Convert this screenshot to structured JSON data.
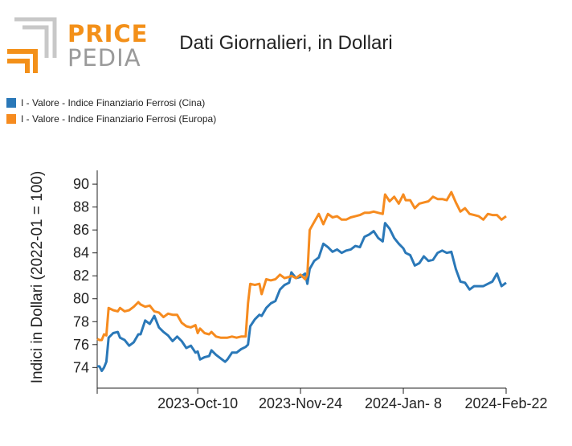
{
  "header": {
    "logo_top": "PRICE",
    "logo_bottom": "PEDIA",
    "title": "Dati Giornalieri, in Dollari"
  },
  "colors": {
    "cina": "#2a78b8",
    "europa": "#f68b1f",
    "logo_orange": "#f39019",
    "logo_gray": "#9a9a9a"
  },
  "chart_data": {
    "type": "line",
    "title": "Dati Giornalieri, in Dollari",
    "ylabel": "Indici in Dollari (2022-01 = 100)",
    "xlabel": "",
    "ylim": [
      72.2,
      91.2
    ],
    "yticks": [
      74,
      76,
      78,
      80,
      82,
      84,
      86,
      88,
      90
    ],
    "x_range": [
      "2023-08-27",
      "2024-02-22"
    ],
    "xticks": [
      {
        "date": "2023-08-27",
        "label": ""
      },
      {
        "date": "2023-10-10",
        "label": "2023-Oct-10"
      },
      {
        "date": "2023-11-24",
        "label": "2023-Nov-24"
      },
      {
        "date": "2024-01-08",
        "label": "2024-Jan- 8"
      },
      {
        "date": "2024-02-22",
        "label": "2024-Feb-22"
      }
    ],
    "legend_position": "top-left",
    "series": [
      {
        "name": "I - Valore - Indice Finanziario Ferrosi (Cina)",
        "color": "#2a78b8",
        "points": [
          [
            "2023-08-27",
            74.1
          ],
          [
            "2023-08-28",
            74.1
          ],
          [
            "2023-08-29",
            73.7
          ],
          [
            "2023-08-30",
            74.0
          ],
          [
            "2023-08-31",
            74.5
          ],
          [
            "2023-09-01",
            76.6
          ],
          [
            "2023-09-03",
            77.0
          ],
          [
            "2023-09-05",
            77.1
          ],
          [
            "2023-09-06",
            76.6
          ],
          [
            "2023-09-08",
            76.4
          ],
          [
            "2023-09-10",
            75.9
          ],
          [
            "2023-09-12",
            76.2
          ],
          [
            "2023-09-14",
            76.9
          ],
          [
            "2023-09-15",
            76.9
          ],
          [
            "2023-09-17",
            78.1
          ],
          [
            "2023-09-19",
            77.8
          ],
          [
            "2023-09-21",
            78.5
          ],
          [
            "2023-09-23",
            77.5
          ],
          [
            "2023-09-25",
            77.1
          ],
          [
            "2023-09-27",
            76.8
          ],
          [
            "2023-09-29",
            76.3
          ],
          [
            "2023-10-01",
            76.7
          ],
          [
            "2023-10-03",
            76.3
          ],
          [
            "2023-10-05",
            75.7
          ],
          [
            "2023-10-07",
            75.9
          ],
          [
            "2023-10-09",
            75.3
          ],
          [
            "2023-10-10",
            75.4
          ],
          [
            "2023-10-11",
            74.7
          ],
          [
            "2023-10-13",
            74.9
          ],
          [
            "2023-10-15",
            75.0
          ],
          [
            "2023-10-16",
            75.5
          ],
          [
            "2023-10-18",
            75.1
          ],
          [
            "2023-10-20",
            74.8
          ],
          [
            "2023-10-22",
            74.5
          ],
          [
            "2023-10-23",
            74.7
          ],
          [
            "2023-10-25",
            75.3
          ],
          [
            "2023-10-27",
            75.3
          ],
          [
            "2023-10-29",
            75.6
          ],
          [
            "2023-10-31",
            75.8
          ],
          [
            "2023-11-01",
            76.0
          ],
          [
            "2023-11-02",
            77.6
          ],
          [
            "2023-11-04",
            78.2
          ],
          [
            "2023-11-06",
            78.6
          ],
          [
            "2023-11-07",
            78.5
          ],
          [
            "2023-11-09",
            79.2
          ],
          [
            "2023-11-11",
            79.6
          ],
          [
            "2023-11-13",
            79.8
          ],
          [
            "2023-11-15",
            80.8
          ],
          [
            "2023-11-17",
            81.2
          ],
          [
            "2023-11-19",
            81.4
          ],
          [
            "2023-11-20",
            82.3
          ],
          [
            "2023-11-22",
            81.8
          ],
          [
            "2023-11-24",
            81.9
          ],
          [
            "2023-11-26",
            82.2
          ],
          [
            "2023-11-27",
            81.3
          ],
          [
            "2023-11-28",
            82.6
          ],
          [
            "2023-11-30",
            83.3
          ],
          [
            "2023-12-02",
            83.6
          ],
          [
            "2023-12-04",
            84.8
          ],
          [
            "2023-12-06",
            84.5
          ],
          [
            "2023-12-08",
            84.1
          ],
          [
            "2023-12-10",
            84.3
          ],
          [
            "2023-12-12",
            84.0
          ],
          [
            "2023-12-14",
            84.2
          ],
          [
            "2023-12-16",
            84.3
          ],
          [
            "2023-12-18",
            84.6
          ],
          [
            "2023-12-20",
            84.5
          ],
          [
            "2023-12-22",
            85.4
          ],
          [
            "2023-12-24",
            85.6
          ],
          [
            "2023-12-26",
            85.9
          ],
          [
            "2023-12-28",
            85.3
          ],
          [
            "2023-12-30",
            85.0
          ],
          [
            "2023-12-31",
            86.6
          ],
          [
            "2024-01-02",
            86.1
          ],
          [
            "2024-01-04",
            85.3
          ],
          [
            "2024-01-06",
            84.8
          ],
          [
            "2024-01-08",
            84.4
          ],
          [
            "2024-01-09",
            84.0
          ],
          [
            "2024-01-11",
            83.8
          ],
          [
            "2024-01-13",
            82.9
          ],
          [
            "2024-01-15",
            83.1
          ],
          [
            "2024-01-17",
            83.7
          ],
          [
            "2024-01-19",
            83.3
          ],
          [
            "2024-01-21",
            83.4
          ],
          [
            "2024-01-23",
            84.0
          ],
          [
            "2024-01-25",
            84.2
          ],
          [
            "2024-01-27",
            84.0
          ],
          [
            "2024-01-29",
            84.1
          ],
          [
            "2024-01-31",
            82.6
          ],
          [
            "2024-02-02",
            81.5
          ],
          [
            "2024-02-04",
            81.4
          ],
          [
            "2024-02-06",
            80.8
          ],
          [
            "2024-02-08",
            81.1
          ],
          [
            "2024-02-10",
            81.1
          ],
          [
            "2024-02-12",
            81.1
          ],
          [
            "2024-02-14",
            81.3
          ],
          [
            "2024-02-16",
            81.5
          ],
          [
            "2024-02-18",
            82.2
          ],
          [
            "2024-02-20",
            81.1
          ],
          [
            "2024-02-22",
            81.4
          ]
        ]
      },
      {
        "name": "I - Valore - Indice Finanziario Ferrosi (Europa)",
        "color": "#f68b1f",
        "points": [
          [
            "2023-08-27",
            76.5
          ],
          [
            "2023-08-28",
            76.4
          ],
          [
            "2023-08-29",
            76.4
          ],
          [
            "2023-08-30",
            76.9
          ],
          [
            "2023-08-31",
            76.8
          ],
          [
            "2023-09-01",
            79.2
          ],
          [
            "2023-09-03",
            79.0
          ],
          [
            "2023-09-05",
            78.9
          ],
          [
            "2023-09-06",
            79.2
          ],
          [
            "2023-09-08",
            78.9
          ],
          [
            "2023-09-10",
            79.0
          ],
          [
            "2023-09-12",
            79.3
          ],
          [
            "2023-09-14",
            79.7
          ],
          [
            "2023-09-15",
            79.5
          ],
          [
            "2023-09-17",
            79.3
          ],
          [
            "2023-09-19",
            79.4
          ],
          [
            "2023-09-21",
            78.9
          ],
          [
            "2023-09-23",
            78.8
          ],
          [
            "2023-09-25",
            78.4
          ],
          [
            "2023-09-27",
            78.7
          ],
          [
            "2023-09-29",
            78.6
          ],
          [
            "2023-10-01",
            78.6
          ],
          [
            "2023-10-03",
            77.9
          ],
          [
            "2023-10-05",
            77.6
          ],
          [
            "2023-10-07",
            77.5
          ],
          [
            "2023-10-09",
            77.7
          ],
          [
            "2023-10-10",
            77.0
          ],
          [
            "2023-10-11",
            77.4
          ],
          [
            "2023-10-13",
            77.0
          ],
          [
            "2023-10-15",
            76.9
          ],
          [
            "2023-10-16",
            77.1
          ],
          [
            "2023-10-18",
            76.7
          ],
          [
            "2023-10-20",
            76.6
          ],
          [
            "2023-10-22",
            76.6
          ],
          [
            "2023-10-23",
            76.6
          ],
          [
            "2023-10-25",
            76.7
          ],
          [
            "2023-10-27",
            76.6
          ],
          [
            "2023-10-29",
            76.7
          ],
          [
            "2023-10-31",
            76.7
          ],
          [
            "2023-11-01",
            79.6
          ],
          [
            "2023-11-02",
            81.3
          ],
          [
            "2023-11-04",
            81.2
          ],
          [
            "2023-11-06",
            81.3
          ],
          [
            "2023-11-07",
            80.4
          ],
          [
            "2023-11-09",
            81.7
          ],
          [
            "2023-11-11",
            81.6
          ],
          [
            "2023-11-13",
            81.7
          ],
          [
            "2023-11-15",
            82.1
          ],
          [
            "2023-11-17",
            81.8
          ],
          [
            "2023-11-19",
            81.9
          ],
          [
            "2023-11-20",
            82.0
          ],
          [
            "2023-11-22",
            81.8
          ],
          [
            "2023-11-24",
            82.1
          ],
          [
            "2023-11-26",
            81.7
          ],
          [
            "2023-11-27",
            82.1
          ],
          [
            "2023-11-28",
            86.0
          ],
          [
            "2023-11-30",
            86.7
          ],
          [
            "2023-12-02",
            87.4
          ],
          [
            "2023-12-04",
            86.5
          ],
          [
            "2023-12-06",
            87.4
          ],
          [
            "2023-12-08",
            87.1
          ],
          [
            "2023-12-10",
            87.2
          ],
          [
            "2023-12-12",
            86.9
          ],
          [
            "2023-12-14",
            86.9
          ],
          [
            "2023-12-16",
            87.1
          ],
          [
            "2023-12-18",
            87.2
          ],
          [
            "2023-12-20",
            87.3
          ],
          [
            "2023-12-22",
            87.5
          ],
          [
            "2023-12-24",
            87.5
          ],
          [
            "2023-12-26",
            87.6
          ],
          [
            "2023-12-28",
            87.5
          ],
          [
            "2023-12-30",
            87.4
          ],
          [
            "2023-12-31",
            89.1
          ],
          [
            "2024-01-02",
            88.5
          ],
          [
            "2024-01-04",
            88.9
          ],
          [
            "2024-01-06",
            88.3
          ],
          [
            "2024-01-08",
            89.1
          ],
          [
            "2024-01-09",
            88.6
          ],
          [
            "2024-01-11",
            88.6
          ],
          [
            "2024-01-13",
            87.9
          ],
          [
            "2024-01-15",
            88.3
          ],
          [
            "2024-01-17",
            88.4
          ],
          [
            "2024-01-19",
            88.5
          ],
          [
            "2024-01-21",
            88.9
          ],
          [
            "2024-01-23",
            88.7
          ],
          [
            "2024-01-25",
            88.7
          ],
          [
            "2024-01-27",
            88.6
          ],
          [
            "2024-01-29",
            89.3
          ],
          [
            "2024-01-31",
            88.4
          ],
          [
            "2024-02-02",
            87.6
          ],
          [
            "2024-02-04",
            87.9
          ],
          [
            "2024-02-06",
            87.4
          ],
          [
            "2024-02-08",
            87.3
          ],
          [
            "2024-02-10",
            87.2
          ],
          [
            "2024-02-12",
            86.9
          ],
          [
            "2024-02-14",
            87.4
          ],
          [
            "2024-02-16",
            87.3
          ],
          [
            "2024-02-18",
            87.3
          ],
          [
            "2024-02-20",
            86.9
          ],
          [
            "2024-02-22",
            87.2
          ]
        ]
      }
    ]
  }
}
